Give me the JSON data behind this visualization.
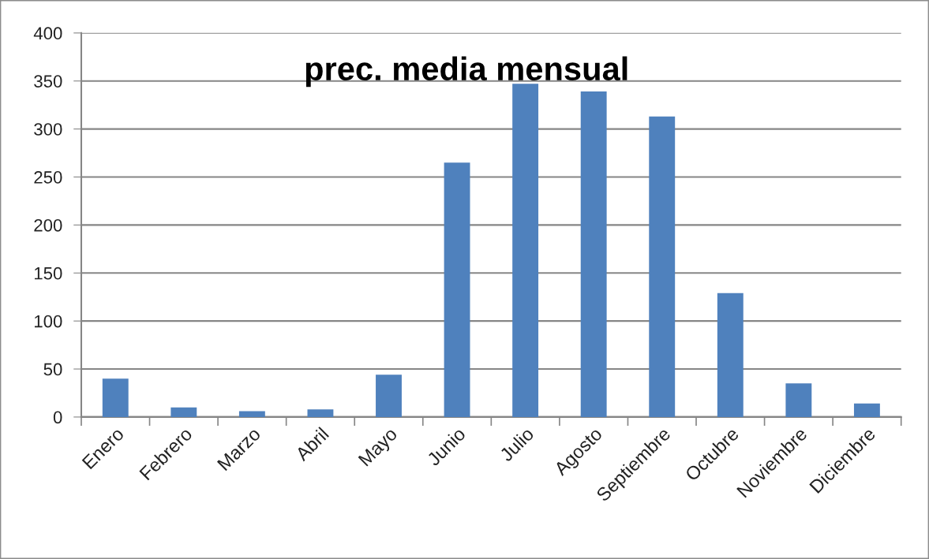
{
  "chart_data": {
    "type": "bar",
    "title": "prec. media mensual",
    "categories": [
      "Enero",
      "Febrero",
      "Marzo",
      "Abril",
      "Mayo",
      "Junio",
      "Julio",
      "Agosto",
      "Septiembre",
      "Octubre",
      "Noviembre",
      "Diciembre"
    ],
    "values": [
      40,
      10,
      6,
      8,
      44,
      265,
      347,
      339,
      313,
      129,
      35,
      14
    ],
    "color": "#4f81bd",
    "ylim": [
      0,
      400
    ],
    "yticks": [
      0,
      50,
      100,
      150,
      200,
      250,
      300,
      350,
      400
    ],
    "grid": "y"
  }
}
